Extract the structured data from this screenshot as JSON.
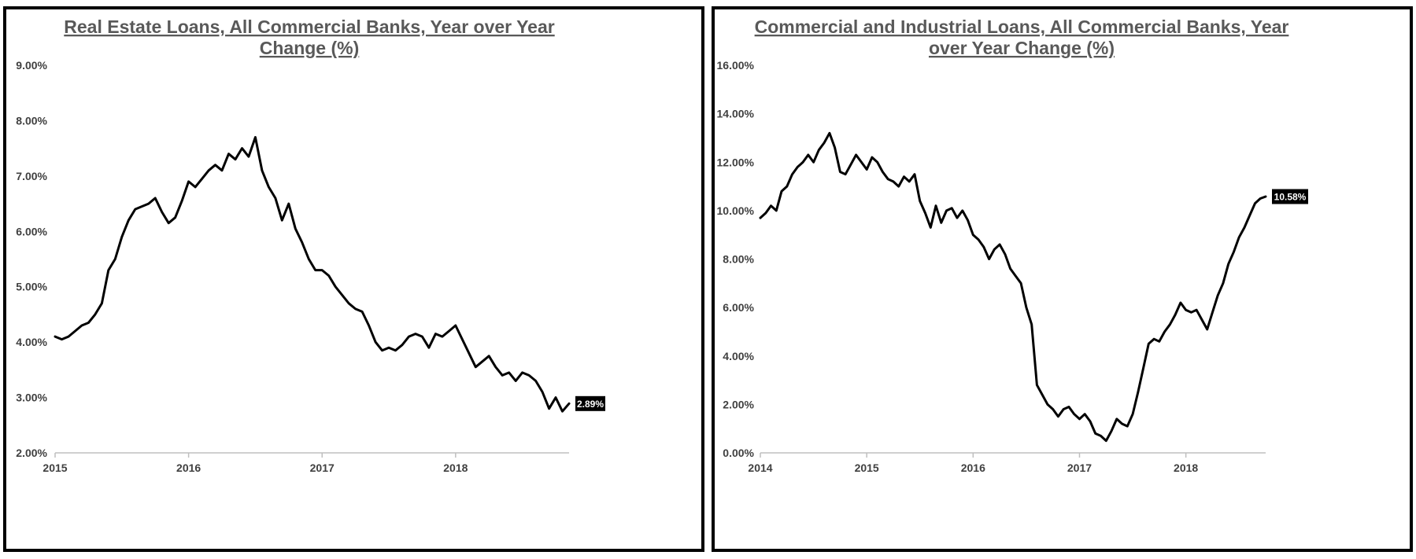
{
  "chart_data": [
    {
      "type": "line",
      "title_lines": [
        "Real Estate Loans, All Commercial Banks, Year over Year",
        "Change (%)"
      ],
      "xlabel": "",
      "ylabel": "",
      "y_ticks": [
        "2.00%",
        "3.00%",
        "4.00%",
        "5.00%",
        "6.00%",
        "7.00%",
        "8.00%",
        "9.00%"
      ],
      "ylim": [
        2,
        9
      ],
      "x_ticks": [
        "2015",
        "2016",
        "2017",
        "2018"
      ],
      "xlim": [
        2015.0,
        2018.85
      ],
      "grid": false,
      "line_color": "#000000",
      "end_label": "2.89%",
      "series": [
        {
          "x": [
            2015.0,
            2015.05,
            2015.1,
            2015.15,
            2015.2,
            2015.25,
            2015.3,
            2015.35,
            2015.4,
            2015.45,
            2015.5,
            2015.55,
            2015.6,
            2015.65,
            2015.7,
            2015.75,
            2015.8,
            2015.85,
            2015.9,
            2015.95,
            2016.0,
            2016.05,
            2016.1,
            2016.15,
            2016.2,
            2016.25,
            2016.3,
            2016.35,
            2016.4,
            2016.45,
            2016.5,
            2016.55,
            2016.6,
            2016.65,
            2016.7,
            2016.75,
            2016.8,
            2016.85,
            2016.9,
            2016.95,
            2017.0,
            2017.05,
            2017.1,
            2017.15,
            2017.2,
            2017.25,
            2017.3,
            2017.35,
            2017.4,
            2017.45,
            2017.5,
            2017.55,
            2017.6,
            2017.65,
            2017.7,
            2017.75,
            2017.8,
            2017.85,
            2017.9,
            2017.95,
            2018.0,
            2018.05,
            2018.1,
            2018.15,
            2018.2,
            2018.25,
            2018.3,
            2018.35,
            2018.4,
            2018.45,
            2018.5,
            2018.55,
            2018.6,
            2018.65,
            2018.7,
            2018.75,
            2018.8,
            2018.85
          ],
          "y": [
            4.1,
            4.05,
            4.1,
            4.2,
            4.3,
            4.35,
            4.5,
            4.7,
            5.3,
            5.5,
            5.9,
            6.2,
            6.4,
            6.45,
            6.5,
            6.6,
            6.35,
            6.15,
            6.25,
            6.55,
            6.9,
            6.8,
            6.95,
            7.1,
            7.2,
            7.1,
            7.4,
            7.3,
            7.5,
            7.35,
            7.7,
            7.1,
            6.8,
            6.6,
            6.2,
            6.5,
            6.05,
            5.8,
            5.5,
            5.3,
            5.3,
            5.2,
            5.0,
            4.85,
            4.7,
            4.6,
            4.55,
            4.3,
            4.0,
            3.85,
            3.9,
            3.85,
            3.95,
            4.1,
            4.15,
            4.1,
            3.9,
            4.15,
            4.1,
            4.2,
            4.3,
            4.05,
            3.8,
            3.55,
            3.65,
            3.75,
            3.55,
            3.4,
            3.45,
            3.3,
            3.45,
            3.4,
            3.3,
            3.1,
            2.8,
            3.0,
            2.75,
            2.89
          ]
        }
      ]
    },
    {
      "type": "line",
      "title_lines": [
        "Commercial and Industrial Loans, All Commercial Banks, Year",
        "over Year Change (%)"
      ],
      "xlabel": "",
      "ylabel": "",
      "y_ticks": [
        "0.00%",
        "2.00%",
        "4.00%",
        "6.00%",
        "8.00%",
        "10.00%",
        "12.00%",
        "14.00%",
        "16.00%"
      ],
      "ylim": [
        0,
        16
      ],
      "x_ticks": [
        "2014",
        "2015",
        "2016",
        "2017",
        "2018"
      ],
      "xlim": [
        2014.0,
        2018.75
      ],
      "grid": false,
      "line_color": "#000000",
      "end_label": "10.58%",
      "series": [
        {
          "x": [
            2014.0,
            2014.05,
            2014.1,
            2014.15,
            2014.2,
            2014.25,
            2014.3,
            2014.35,
            2014.4,
            2014.45,
            2014.5,
            2014.55,
            2014.6,
            2014.65,
            2014.7,
            2014.75,
            2014.8,
            2014.85,
            2014.9,
            2014.95,
            2015.0,
            2015.05,
            2015.1,
            2015.15,
            2015.2,
            2015.25,
            2015.3,
            2015.35,
            2015.4,
            2015.45,
            2015.5,
            2015.55,
            2015.6,
            2015.65,
            2015.7,
            2015.75,
            2015.8,
            2015.85,
            2015.9,
            2015.95,
            2016.0,
            2016.05,
            2016.1,
            2016.15,
            2016.2,
            2016.25,
            2016.3,
            2016.35,
            2016.4,
            2016.45,
            2016.5,
            2016.55,
            2016.6,
            2016.65,
            2016.7,
            2016.75,
            2016.8,
            2016.85,
            2016.9,
            2016.95,
            2017.0,
            2017.05,
            2017.1,
            2017.15,
            2017.2,
            2017.25,
            2017.3,
            2017.35,
            2017.4,
            2017.45,
            2017.5,
            2017.55,
            2017.6,
            2017.65,
            2017.7,
            2017.75,
            2017.8,
            2017.85,
            2017.9,
            2017.95,
            2018.0,
            2018.05,
            2018.1,
            2018.15,
            2018.2,
            2018.25,
            2018.3,
            2018.35,
            2018.4,
            2018.45,
            2018.5,
            2018.55,
            2018.6,
            2018.65,
            2018.7,
            2018.75
          ],
          "y": [
            9.7,
            9.9,
            10.2,
            10.0,
            10.8,
            11.0,
            11.5,
            11.8,
            12.0,
            12.3,
            12.0,
            12.5,
            12.8,
            13.2,
            12.6,
            11.6,
            11.5,
            11.9,
            12.3,
            12.0,
            11.7,
            12.2,
            12.0,
            11.6,
            11.3,
            11.2,
            11.0,
            11.4,
            11.2,
            11.5,
            10.4,
            9.9,
            9.3,
            10.2,
            9.5,
            10.0,
            10.1,
            9.7,
            10.0,
            9.6,
            9.0,
            8.8,
            8.5,
            8.0,
            8.4,
            8.6,
            8.2,
            7.6,
            7.3,
            7.0,
            6.0,
            5.3,
            2.8,
            2.4,
            2.0,
            1.8,
            1.5,
            1.8,
            1.9,
            1.6,
            1.4,
            1.6,
            1.3,
            0.8,
            0.7,
            0.5,
            0.9,
            1.4,
            1.2,
            1.1,
            1.6,
            2.5,
            3.5,
            4.5,
            4.7,
            4.6,
            5.0,
            5.3,
            5.7,
            6.2,
            5.9,
            5.8,
            5.9,
            5.5,
            5.1,
            5.8,
            6.5,
            7.0,
            7.8,
            8.3,
            8.9,
            9.3,
            9.8,
            10.3,
            10.5,
            10.58
          ]
        }
      ]
    }
  ]
}
